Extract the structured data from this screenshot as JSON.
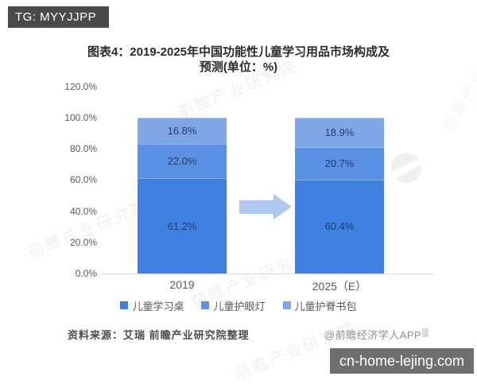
{
  "badge": {
    "text": "TG: MYYJJPP"
  },
  "title": {
    "line1": "图表4：2019-2025年中国功能性儿童学习用品市场构成及",
    "line2": "预测(单位：%)"
  },
  "chart_data": {
    "type": "bar",
    "stacked": true,
    "title": "图表4：2019-2025年中国功能性儿童学习用品市场构成及预测(单位：%)",
    "unit": "%",
    "categories": [
      "2019",
      "2025（E）"
    ],
    "series": [
      {
        "name": "儿童学习桌",
        "values": [
          61.2,
          60.4
        ],
        "color": "#3f80e0"
      },
      {
        "name": "儿童护眼灯",
        "values": [
          22.0,
          20.7
        ],
        "color": "#5b90e3"
      },
      {
        "name": "儿童护脊书包",
        "values": [
          16.8,
          18.9
        ],
        "color": "#7fa7e8"
      }
    ],
    "y_ticks": [
      "120.0%",
      "100.0%",
      "80.0%",
      "60.0%",
      "40.0%",
      "20.0%",
      "0.0%"
    ],
    "ylim": [
      0,
      120
    ],
    "grid": false,
    "legend_position": "bottom",
    "label_color": "#1f3d6f"
  },
  "footer": {
    "source": "资料来源：艾瑞 前瞻产业研究院整理",
    "copyright": "@前瞻经济学人APP"
  },
  "watermarks": {
    "box": "cn-home-lejing.com",
    "diagonal": "前瞻产业研究院"
  }
}
